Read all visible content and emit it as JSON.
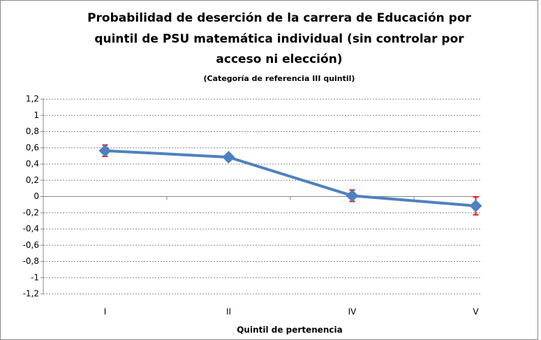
{
  "chart_data": {
    "type": "line",
    "title": [
      "Probabilidad de deserción de la carrera de Educación por",
      "quintil de PSU matemática individual  (sin controlar por",
      "acceso ni elección)"
    ],
    "subtitle": "(Categoría de referencia III quintil)",
    "x_label": "Quintil de pertenencia",
    "categories": [
      "I",
      "II",
      "IV",
      "V"
    ],
    "series": [
      {
        "color": "#4f81bd",
        "values": [
          0.565,
          0.485,
          0.01,
          -0.115
        ],
        "errors": [
          0.07,
          0.04,
          0.07,
          0.11
        ],
        "error_color": "#e0191c"
      }
    ],
    "ylim": [
      -1.2,
      1.2
    ],
    "yticks": [
      {
        "value": -1.2,
        "label": "-1,2"
      },
      -1,
      {
        "value": -0.8,
        "label": "-0,8"
      },
      {
        "value": -0.6,
        "label": "-0,6"
      },
      {
        "value": -0.4,
        "label": "-0,4"
      },
      {
        "value": -0.2,
        "label": "-0,2"
      },
      0,
      {
        "value": 0.2,
        "label": "0,2"
      },
      {
        "value": 0.4,
        "label": "0,4"
      },
      {
        "value": 0.6,
        "label": "0,6"
      },
      {
        "value": 0.8,
        "label": "0,8"
      },
      1,
      {
        "value": 1.2,
        "label": "1,2"
      }
    ],
    "grid": true
  }
}
